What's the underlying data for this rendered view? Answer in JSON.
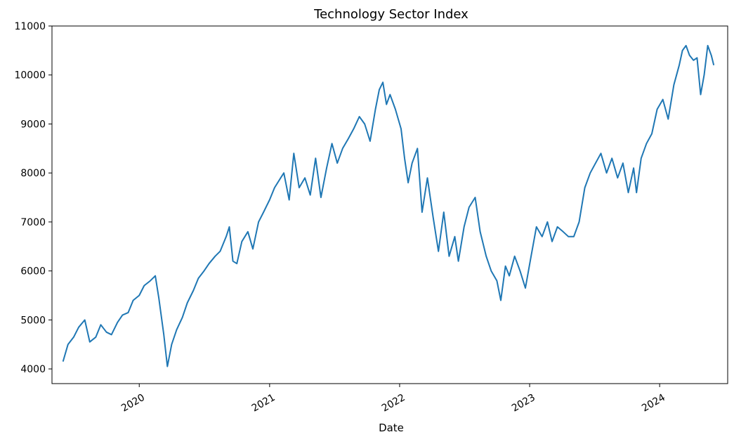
{
  "chart_data": {
    "type": "line",
    "title": "Technology Sector Index",
    "xlabel": "Date",
    "ylabel": "",
    "grid": false,
    "legend": "none",
    "line_color": "#1f77b4",
    "xlim": [
      "2019-05-01",
      "2024-07-10"
    ],
    "ylim": [
      3700,
      11000
    ],
    "x_ticks": [
      {
        "date": "2020-01-01",
        "label": "2020"
      },
      {
        "date": "2021-01-01",
        "label": "2021"
      },
      {
        "date": "2022-01-01",
        "label": "2022"
      },
      {
        "date": "2023-01-01",
        "label": "2023"
      },
      {
        "date": "2024-01-01",
        "label": "2024"
      }
    ],
    "y_ticks": [
      {
        "value": 4000,
        "label": "4000"
      },
      {
        "value": 5000,
        "label": "5000"
      },
      {
        "value": 6000,
        "label": "6000"
      },
      {
        "value": 7000,
        "label": "7000"
      },
      {
        "value": 8000,
        "label": "8000"
      },
      {
        "value": 9000,
        "label": "9000"
      },
      {
        "value": 10000,
        "label": "10000"
      },
      {
        "value": 11000,
        "label": "11000"
      }
    ],
    "series": [
      {
        "x": [
          "2019-06-01",
          "2019-06-15",
          "2019-07-01",
          "2019-07-15",
          "2019-08-01",
          "2019-08-15",
          "2019-09-01",
          "2019-09-15",
          "2019-10-01",
          "2019-10-15",
          "2019-11-01",
          "2019-11-15",
          "2019-12-01",
          "2019-12-15",
          "2020-01-01",
          "2020-01-15",
          "2020-02-01",
          "2020-02-15",
          "2020-02-25",
          "2020-03-10",
          "2020-03-20",
          "2020-04-01",
          "2020-04-15",
          "2020-05-01",
          "2020-05-15",
          "2020-06-01",
          "2020-06-15",
          "2020-07-01",
          "2020-07-15",
          "2020-08-01",
          "2020-08-15",
          "2020-09-01",
          "2020-09-10",
          "2020-09-20",
          "2020-10-01",
          "2020-10-15",
          "2020-11-01",
          "2020-11-15",
          "2020-12-01",
          "2020-12-15",
          "2021-01-01",
          "2021-01-15",
          "2021-02-01",
          "2021-02-10",
          "2021-02-25",
          "2021-03-10",
          "2021-03-25",
          "2021-04-10",
          "2021-04-25",
          "2021-05-10",
          "2021-05-25",
          "2021-06-10",
          "2021-06-25",
          "2021-07-10",
          "2021-07-25",
          "2021-08-10",
          "2021-08-25",
          "2021-09-10",
          "2021-09-25",
          "2021-10-10",
          "2021-10-25",
          "2021-11-05",
          "2021-11-15",
          "2021-11-25",
          "2021-12-05",
          "2021-12-20",
          "2022-01-05",
          "2022-01-15",
          "2022-01-25",
          "2022-02-05",
          "2022-02-20",
          "2022-03-05",
          "2022-03-20",
          "2022-04-05",
          "2022-04-20",
          "2022-05-05",
          "2022-05-20",
          "2022-06-05",
          "2022-06-15",
          "2022-07-01",
          "2022-07-15",
          "2022-08-01",
          "2022-08-15",
          "2022-09-01",
          "2022-09-15",
          "2022-10-01",
          "2022-10-12",
          "2022-10-25",
          "2022-11-05",
          "2022-11-20",
          "2022-12-05",
          "2022-12-20",
          "2023-01-05",
          "2023-01-20",
          "2023-02-05",
          "2023-02-20",
          "2023-03-05",
          "2023-03-20",
          "2023-04-05",
          "2023-04-20",
          "2023-05-05",
          "2023-05-20",
          "2023-06-05",
          "2023-06-20",
          "2023-07-05",
          "2023-07-20",
          "2023-08-05",
          "2023-08-20",
          "2023-09-05",
          "2023-09-20",
          "2023-10-05",
          "2023-10-20",
          "2023-10-28",
          "2023-11-10",
          "2023-11-25",
          "2023-12-10",
          "2023-12-25",
          "2024-01-10",
          "2024-01-25",
          "2024-02-10",
          "2024-02-25",
          "2024-03-05",
          "2024-03-15",
          "2024-03-25",
          "2024-04-05",
          "2024-04-15",
          "2024-04-25",
          "2024-05-05",
          "2024-05-15",
          "2024-05-25",
          "2024-06-01"
        ],
        "y": [
          4150,
          4500,
          4650,
          4850,
          5000,
          4550,
          4650,
          4900,
          4750,
          4700,
          4950,
          5100,
          5150,
          5400,
          5500,
          5700,
          5800,
          5900,
          5450,
          4700,
          4050,
          4500,
          4800,
          5050,
          5350,
          5600,
          5850,
          6000,
          6150,
          6300,
          6400,
          6700,
          6900,
          6200,
          6150,
          6600,
          6800,
          6450,
          7000,
          7200,
          7450,
          7700,
          7900,
          8000,
          7450,
          8400,
          7700,
          7900,
          7550,
          8300,
          7500,
          8100,
          8600,
          8200,
          8500,
          8700,
          8900,
          9150,
          9000,
          8650,
          9300,
          9700,
          9850,
          9400,
          9600,
          9300,
          8900,
          8300,
          7800,
          8200,
          8500,
          7200,
          7900,
          7100,
          6400,
          7200,
          6300,
          6700,
          6200,
          6900,
          7300,
          7500,
          6800,
          6300,
          6000,
          5800,
          5400,
          6100,
          5900,
          6300,
          6000,
          5650,
          6300,
          6900,
          6700,
          7000,
          6600,
          6900,
          6800,
          6700,
          6700,
          7000,
          7700,
          8000,
          8200,
          8400,
          8000,
          8300,
          7900,
          8200,
          7600,
          8100,
          7600,
          8300,
          8600,
          8800,
          9300,
          9500,
          9100,
          9800,
          10200,
          10500,
          10600,
          10400,
          10300,
          10350,
          9600,
          10000,
          10600,
          10400,
          10200
        ]
      }
    ]
  }
}
